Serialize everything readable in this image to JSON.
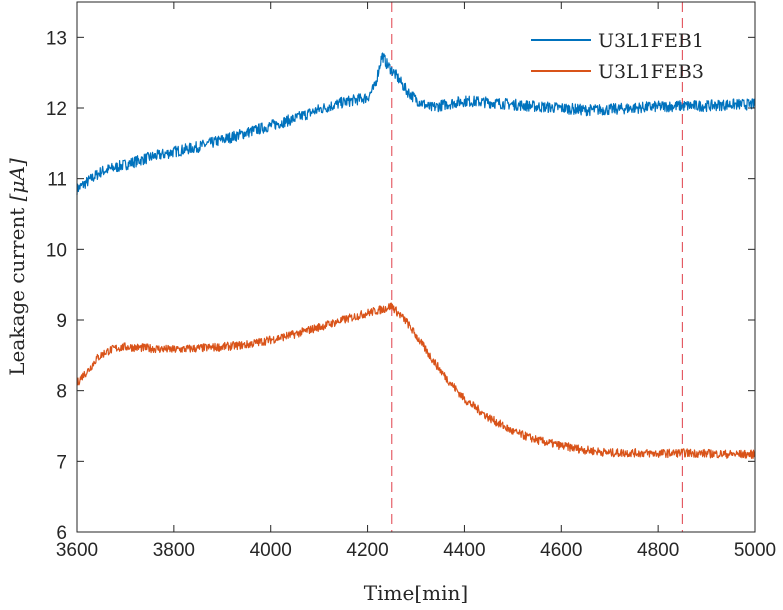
{
  "chart_data": {
    "type": "line",
    "title": "",
    "xlabel": "Time[min]",
    "ylabel_text": "Leakage current ",
    "ylabel_unit": "[μA]",
    "xlim": [
      3600,
      5000
    ],
    "ylim": [
      6,
      13.5
    ],
    "xticks": [
      3600,
      3800,
      4000,
      4200,
      4400,
      4600,
      4800,
      5000
    ],
    "yticks": [
      6,
      7,
      8,
      9,
      10,
      11,
      12,
      13
    ],
    "grid": false,
    "legend_position": "top-right",
    "vlines": [
      {
        "x": 4250,
        "color": "#e0404a"
      },
      {
        "x": 4850,
        "color": "#e0404a"
      }
    ],
    "series": [
      {
        "name": "U3L1FEB1",
        "color": "#0072bd",
        "noise": 0.08,
        "x": [
          3600,
          3620,
          3650,
          3700,
          3750,
          3800,
          3850,
          3900,
          3950,
          4000,
          4050,
          4100,
          4150,
          4200,
          4215,
          4225,
          4230,
          4240,
          4260,
          4280,
          4300,
          4330,
          4360,
          4400,
          4450,
          4500,
          4550,
          4600,
          4650,
          4700,
          4750,
          4800,
          4850,
          4900,
          4950,
          5000
        ],
        "y": [
          10.85,
          10.95,
          11.1,
          11.2,
          11.3,
          11.38,
          11.45,
          11.55,
          11.65,
          11.75,
          11.85,
          11.98,
          12.08,
          12.15,
          12.3,
          12.6,
          12.75,
          12.62,
          12.45,
          12.25,
          12.12,
          12.0,
          12.05,
          12.1,
          12.08,
          12.05,
          12.02,
          12.0,
          11.97,
          11.98,
          12.0,
          12.02,
          12.03,
          12.03,
          12.05,
          12.05
        ]
      },
      {
        "name": "U3L1FEB3",
        "color": "#d95319",
        "noise": 0.06,
        "x": [
          3600,
          3610,
          3625,
          3640,
          3660,
          3680,
          3700,
          3750,
          3800,
          3850,
          3900,
          3950,
          4000,
          4050,
          4100,
          4150,
          4200,
          4230,
          4250,
          4260,
          4280,
          4300,
          4330,
          4360,
          4400,
          4450,
          4500,
          4550,
          4600,
          4650,
          4700,
          4750,
          4800,
          4850,
          4900,
          4950,
          5000
        ],
        "y": [
          8.1,
          8.2,
          8.3,
          8.45,
          8.55,
          8.6,
          8.62,
          8.6,
          8.58,
          8.6,
          8.62,
          8.65,
          8.72,
          8.8,
          8.9,
          9.0,
          9.1,
          9.15,
          9.2,
          9.12,
          8.98,
          8.78,
          8.48,
          8.2,
          7.88,
          7.62,
          7.42,
          7.3,
          7.22,
          7.16,
          7.12,
          7.12,
          7.11,
          7.12,
          7.11,
          7.1,
          7.1
        ]
      }
    ]
  }
}
